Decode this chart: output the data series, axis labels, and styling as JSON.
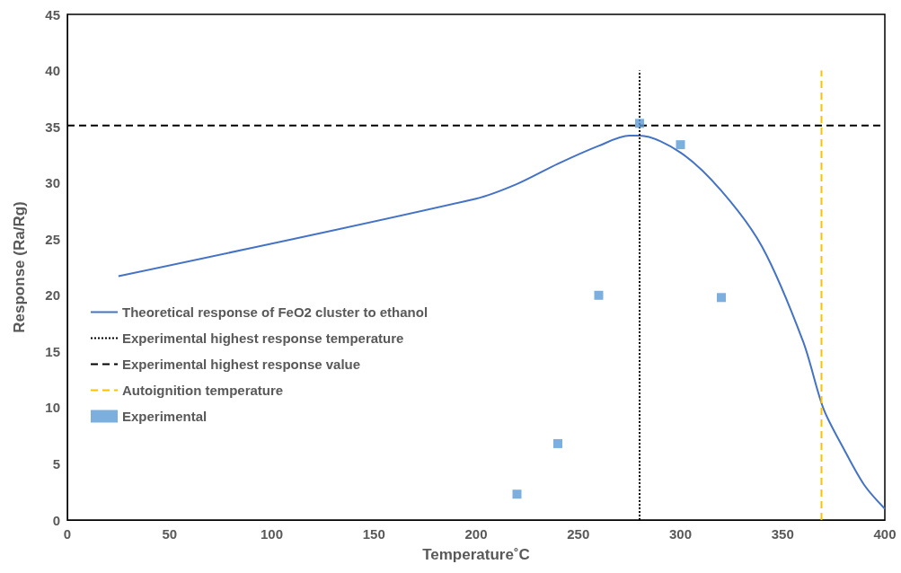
{
  "chart_data": {
    "type": "line",
    "xlabel": "Temperature˚C",
    "ylabel": "Response (Ra/Rg)",
    "xlim": [
      0,
      400
    ],
    "xticks": [
      0,
      50,
      100,
      150,
      200,
      250,
      300,
      350,
      400
    ],
    "ylim": [
      0,
      45
    ],
    "yticks": [
      0,
      5,
      10,
      15,
      20,
      25,
      30,
      35,
      40,
      45
    ],
    "grid": false,
    "legend": "left",
    "series": [
      {
        "name": "Theoretical response of FeO2 cluster to ethanol",
        "color": "#4472c4",
        "line_style": "solid",
        "marker": "none",
        "x": [
          25,
          200,
          220,
          240,
          260,
          275,
          280,
          300,
          320,
          340,
          360,
          370,
          380,
          390,
          400
        ],
        "values": [
          21.7,
          28.6,
          29.9,
          31.7,
          33.3,
          34.2,
          34.2,
          32.7,
          29.3,
          24.3,
          15.9,
          9.9,
          6.3,
          3.1,
          1.0
        ]
      },
      {
        "name": "Experimental highest response temperature",
        "type": "line",
        "color": "#000000",
        "line_style": "dotted",
        "marker": "none",
        "x": [
          280,
          280
        ],
        "values": [
          0,
          40
        ]
      },
      {
        "name": "Experimental highest response value",
        "type": "line",
        "color": "#000000",
        "line_style": "dashed",
        "marker": "none",
        "x": [
          0,
          400
        ],
        "values": [
          35.1,
          35.1
        ]
      },
      {
        "name": "Autoignition temperature",
        "type": "line",
        "color": "#ffc000",
        "line_style": "dashed",
        "marker": "none",
        "x": [
          369,
          369
        ],
        "values": [
          0,
          40
        ]
      },
      {
        "name": "Experimental",
        "type": "scatter",
        "color": "#5b9bd5",
        "marker": "square",
        "x": [
          220,
          240,
          260,
          280,
          300,
          320
        ],
        "values": [
          2.3,
          6.8,
          20,
          35.3,
          33.4,
          19.8
        ]
      }
    ]
  }
}
